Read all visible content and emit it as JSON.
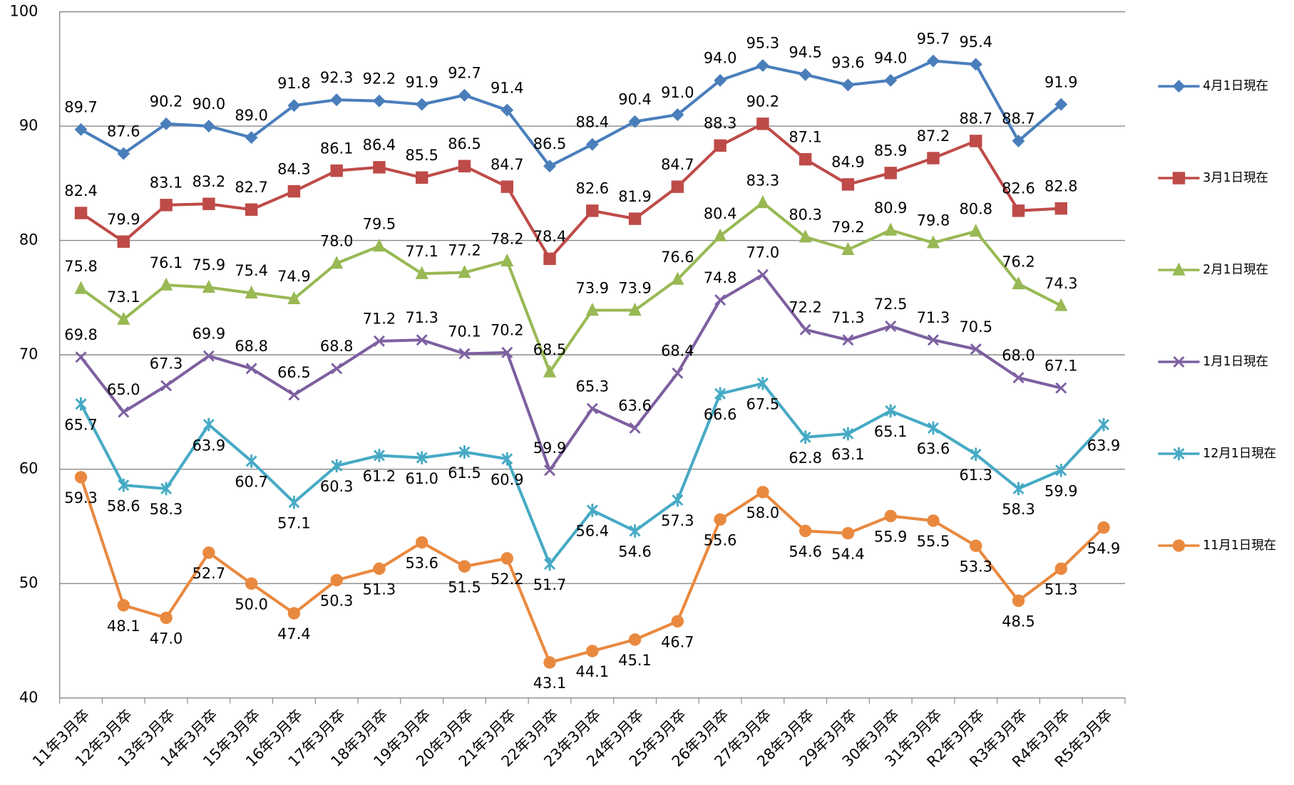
{
  "chart_data": {
    "type": "line",
    "categories": [
      "11年3月卒",
      "12年3月卒",
      "13年3月卒",
      "14年3月卒",
      "15年3月卒",
      "16年3月卒",
      "17年3月卒",
      "18年3月卒",
      "19年3月卒",
      "20年3月卒",
      "21年3月卒",
      "22年3月卒",
      "23年3月卒",
      "24年3月卒",
      "25年3月卒",
      "26年3月卒",
      "27年3月卒",
      "28年3月卒",
      "29年3月卒",
      "30年3月卒",
      "31年3月卒",
      "R2年3月卒",
      "R3年3月卒",
      "R4年3月卒",
      "R5年3月卒"
    ],
    "ylim": [
      40,
      100
    ],
    "yticks": [
      40,
      50,
      60,
      70,
      80,
      90,
      100
    ],
    "grid": true,
    "legend": "right",
    "series": [
      {
        "name": "4月1日現在",
        "color": "#4a7ebb",
        "marker": "diamond",
        "values": [
          89.7,
          87.6,
          90.2,
          90.0,
          89.0,
          91.8,
          92.3,
          92.2,
          91.9,
          92.7,
          91.4,
          86.5,
          88.4,
          90.4,
          91.0,
          94.0,
          95.3,
          94.5,
          93.6,
          94.0,
          95.7,
          95.4,
          88.7,
          91.9,
          null
        ],
        "value_labels": [
          "89.7",
          "87.6",
          "90.2",
          "90.0",
          "89.0",
          "91.8",
          "92.3",
          "92.2",
          "91.9",
          "92.7",
          "91.4",
          "86.5",
          "88.4",
          "90.4",
          "91.0",
          "94.0",
          "95.3",
          "94.5",
          "93.6",
          "94.0",
          "95.7",
          "95.4",
          "88.7",
          "91.9",
          null
        ]
      },
      {
        "name": "3月1日現在",
        "color": "#be4b48",
        "marker": "square",
        "values": [
          82.4,
          79.9,
          83.1,
          83.2,
          82.7,
          84.3,
          86.1,
          86.4,
          85.5,
          86.5,
          84.7,
          78.4,
          82.6,
          81.9,
          84.7,
          88.3,
          90.2,
          87.1,
          84.9,
          85.9,
          87.2,
          88.7,
          82.6,
          82.8,
          null
        ],
        "value_labels": [
          "82.4",
          "79.9",
          "83.1",
          "83.2",
          "82.7",
          "84.3",
          "86.1",
          "86.4",
          "85.5",
          "86.5",
          "84.7",
          "78.4",
          "82.6",
          "81.9",
          "84.7",
          "88.3",
          "90.2",
          "87.1",
          "84.9",
          "85.9",
          "87.2",
          "88.7",
          "82.6",
          "82.8",
          null
        ]
      },
      {
        "name": "2月1日現在",
        "color": "#98b954",
        "marker": "triangle",
        "values": [
          75.8,
          73.1,
          76.1,
          75.9,
          75.4,
          74.9,
          78.0,
          79.5,
          77.1,
          77.2,
          78.2,
          68.5,
          73.9,
          73.9,
          76.6,
          80.4,
          83.3,
          80.3,
          79.2,
          80.9,
          79.8,
          80.8,
          76.2,
          74.3,
          null
        ],
        "value_labels": [
          "75.8",
          "73.1",
          "76.1",
          "75.9",
          "75.4",
          "74.9",
          "78.0",
          "79.5",
          "77.1",
          "77.2",
          "78.2",
          "68.5",
          "73.9",
          "73.9",
          "76.6",
          "80.4",
          "83.3",
          "80.3",
          "79.2",
          "80.9",
          "79.8",
          "80.8",
          "76.2",
          "74.3",
          null
        ]
      },
      {
        "name": "1月1日現在",
        "color": "#7d60a0",
        "marker": "x",
        "values": [
          69.8,
          65.0,
          67.3,
          69.9,
          68.8,
          66.5,
          68.8,
          71.2,
          71.3,
          70.1,
          70.2,
          59.9,
          65.3,
          63.6,
          68.4,
          74.8,
          77.0,
          72.2,
          71.3,
          72.5,
          71.3,
          70.5,
          68.0,
          67.1,
          null
        ],
        "value_labels": [
          "69.8",
          "65.0",
          "67.3",
          "69.9",
          "68.8",
          "66.5",
          "68.8",
          "71.2",
          "71.3",
          "70.1",
          "70.2",
          "59.9",
          "65.3",
          "63.6",
          "68.4",
          "74.8",
          "77.0",
          "72.2",
          "71.3",
          "72.5",
          "71.3",
          "70.5",
          "68.0",
          "67.1",
          null
        ]
      },
      {
        "name": "12月1日現在",
        "color": "#46aac5",
        "marker": "star",
        "values": [
          65.7,
          58.6,
          58.3,
          63.9,
          60.7,
          57.1,
          60.3,
          61.2,
          61.0,
          61.5,
          60.9,
          51.7,
          56.4,
          54.6,
          57.3,
          66.6,
          67.5,
          62.8,
          63.1,
          65.1,
          63.6,
          61.3,
          58.3,
          59.9,
          63.9
        ],
        "value_labels": [
          "65.7",
          "58.6",
          "58.3",
          "63.9",
          "60.7",
          "57.1",
          "60.3",
          "61.2",
          "61.0",
          "61.5",
          "60.9",
          "51.7",
          "56.4",
          "54.6",
          "57.3",
          "66.6",
          "67.5",
          "62.8",
          "63.1",
          "65.1",
          "63.6",
          "61.3",
          "58.3",
          "59.9",
          "63.9"
        ]
      },
      {
        "name": "11月1日現在",
        "color": "#e9893f",
        "marker": "circle",
        "values": [
          59.3,
          48.1,
          47.0,
          52.7,
          50.0,
          47.4,
          50.3,
          51.3,
          53.6,
          51.5,
          52.2,
          43.1,
          44.1,
          45.1,
          46.7,
          55.6,
          58.0,
          54.6,
          54.4,
          55.9,
          55.5,
          53.3,
          48.5,
          51.3,
          54.9
        ],
        "value_labels": [
          "59.3",
          "48.1",
          "47.0",
          "52.7",
          "50.0",
          "47.4",
          "50.3",
          "51.3",
          "53.6",
          "51.5",
          "52.2",
          "43.1",
          "44.1",
          "45.1",
          "46.7",
          "55.6",
          "58.0",
          "54.6",
          "54.4",
          "55.9",
          "55.5",
          "53.3",
          "48.5",
          "51.3",
          "54.9"
        ]
      }
    ]
  }
}
